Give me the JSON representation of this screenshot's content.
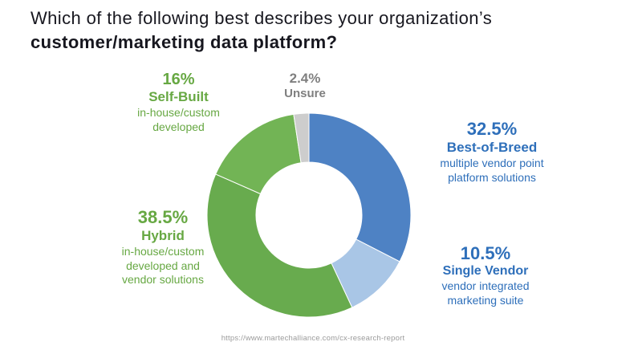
{
  "title": {
    "line1": "Which of the following best describes your organization’s",
    "line2": "customer/marketing data platform?"
  },
  "source_url": "https://www.martechalliance.com/cx-research-report",
  "colors": {
    "title_text": "#17171f",
    "blue_label": "#2e6fba",
    "green_label": "#67a843",
    "gray_label": "#7f7f7f",
    "background": "#ffffff"
  },
  "chart_data": {
    "type": "pie",
    "donut": true,
    "start_angle_deg": -90,
    "direction": "clockwise",
    "title": "Which of the following best describes your organization’s customer/marketing data platform?",
    "legend": "none",
    "segments": [
      {
        "label": "Best-of-Breed",
        "pct": "32.5%",
        "value": 32.5,
        "desc": "multiple vendor point platform solutions",
        "color": "#4e82c4"
      },
      {
        "label": "Single Vendor",
        "pct": "10.5%",
        "value": 10.5,
        "desc": "vendor integrated marketing suite",
        "color": "#a9c6e6"
      },
      {
        "label": "Hybrid",
        "pct": "38.5%",
        "value": 38.5,
        "desc": "in-house/custom developed and vendor solutions",
        "color": "#68ab4e"
      },
      {
        "label": "Self-Built",
        "pct": "16%",
        "value": 16,
        "desc": "in-house/custom developed",
        "color": "#72b455"
      },
      {
        "label": "Unsure",
        "pct": "2.4%",
        "value": 2.4,
        "desc": "",
        "color": "#cdcdcd"
      }
    ]
  }
}
